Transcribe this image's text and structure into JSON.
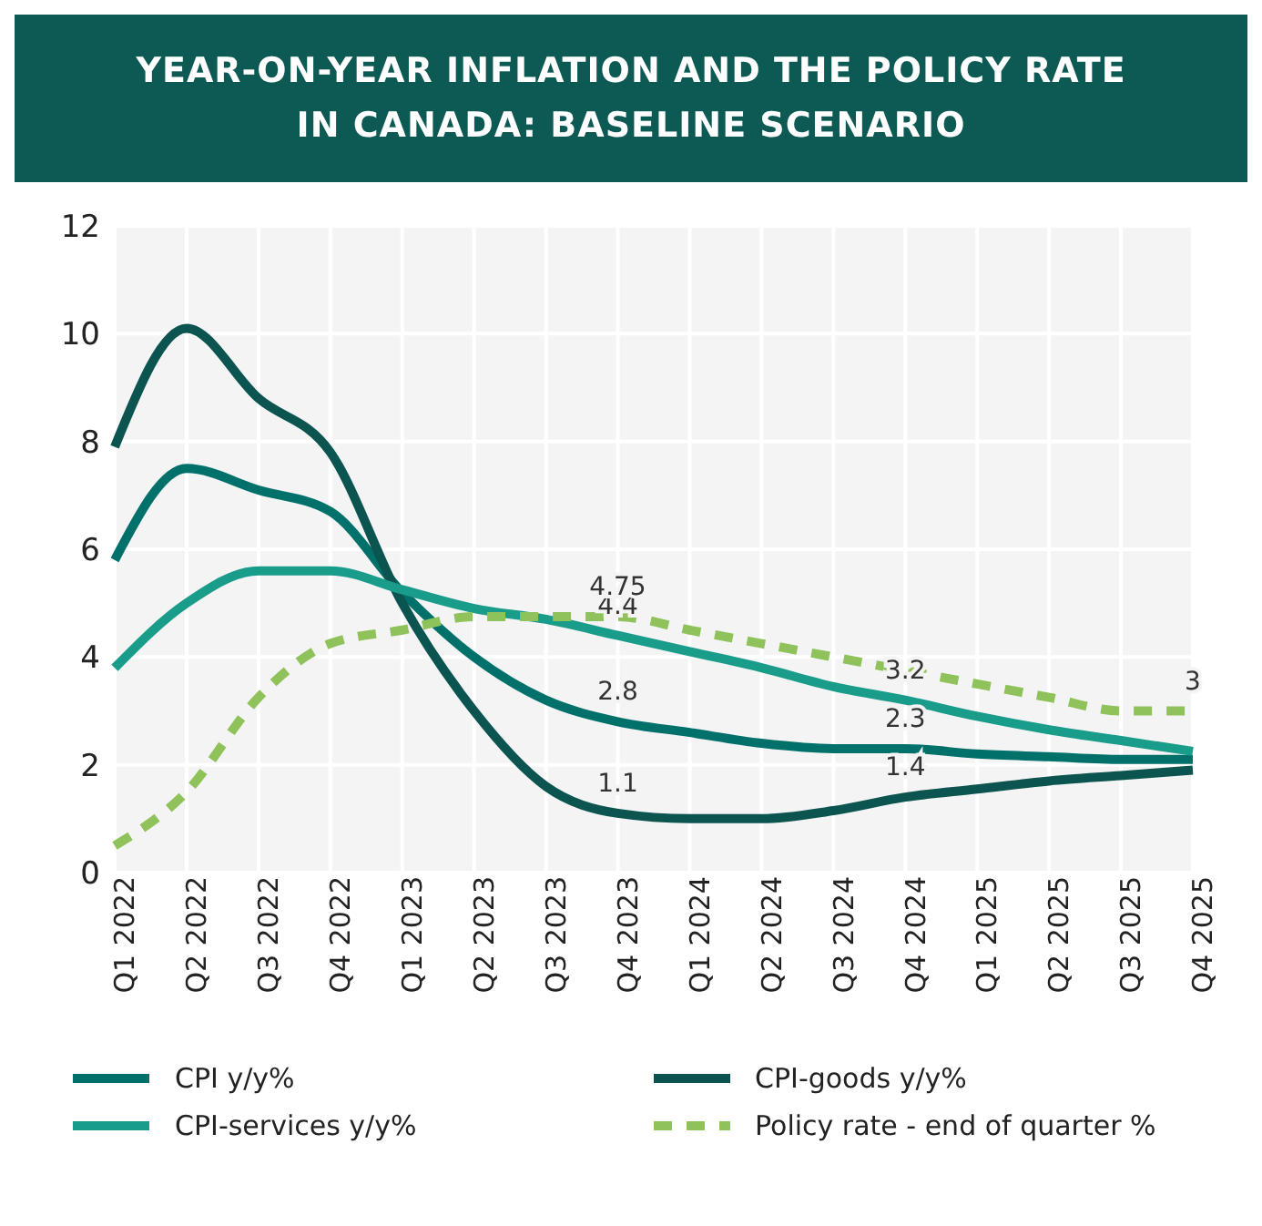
{
  "chart_data": {
    "type": "line",
    "title": "YEAR-ON-YEAR INFLATION AND THE POLICY RATE IN CANADA: BASELINE SCENARIO",
    "categories": [
      "Q1 2022",
      "Q2 2022",
      "Q3 2022",
      "Q4 2022",
      "Q1 2023",
      "Q2 2023",
      "Q3 2023",
      "Q4 2023",
      "Q1 2024",
      "Q2 2024",
      "Q3 2024",
      "Q4 2024",
      "Q1 2025",
      "Q2 2025",
      "Q3 2025",
      "Q4 2025"
    ],
    "series": [
      {
        "name": "CPI y/y%",
        "color": "#00706b",
        "values": [
          5.8,
          7.5,
          7.1,
          6.7,
          5.2,
          4.0,
          3.2,
          2.8,
          2.6,
          2.4,
          2.3,
          2.3,
          2.2,
          2.15,
          2.1,
          2.1
        ],
        "value_labels": [
          null,
          null,
          null,
          null,
          null,
          null,
          null,
          "2.8",
          null,
          null,
          null,
          "2.3",
          null,
          null,
          null,
          null
        ]
      },
      {
        "name": "CPI-goods y/y%",
        "color": "#0b5450",
        "values": [
          7.9,
          10.1,
          8.8,
          7.8,
          5.0,
          3.0,
          1.6,
          1.1,
          1.0,
          1.0,
          1.15,
          1.4,
          1.55,
          1.7,
          1.8,
          1.9
        ],
        "value_labels": [
          null,
          null,
          null,
          null,
          null,
          null,
          null,
          "1.1",
          null,
          null,
          null,
          "1.4",
          null,
          null,
          null,
          null
        ]
      },
      {
        "name": "CPI-services y/y%",
        "color": "#1a9c8a",
        "values": [
          3.8,
          5.0,
          5.6,
          5.6,
          5.25,
          4.9,
          4.7,
          4.4,
          4.1,
          3.8,
          3.45,
          3.2,
          2.9,
          2.65,
          2.45,
          2.25
        ],
        "value_labels": [
          null,
          null,
          null,
          null,
          null,
          null,
          null,
          "4.4",
          null,
          null,
          null,
          "3.2",
          null,
          null,
          null,
          null
        ]
      },
      {
        "name": "Policy rate - end of quarter %",
        "color": "#8fc25a",
        "line_style": "dashed",
        "values": [
          0.5,
          1.5,
          3.25,
          4.25,
          4.5,
          4.75,
          4.75,
          4.75,
          4.5,
          4.25,
          4.0,
          3.75,
          3.5,
          3.25,
          3.0,
          3.0
        ],
        "value_labels": [
          null,
          null,
          null,
          null,
          null,
          null,
          null,
          "4.75",
          null,
          null,
          null,
          null,
          null,
          null,
          null,
          "3"
        ]
      }
    ],
    "ylim": [
      0,
      12
    ],
    "yticks": [
      0,
      2,
      4,
      6,
      8,
      10,
      12
    ],
    "grid": true,
    "legend": "bottom",
    "marker": "none",
    "line_style": "solid"
  }
}
